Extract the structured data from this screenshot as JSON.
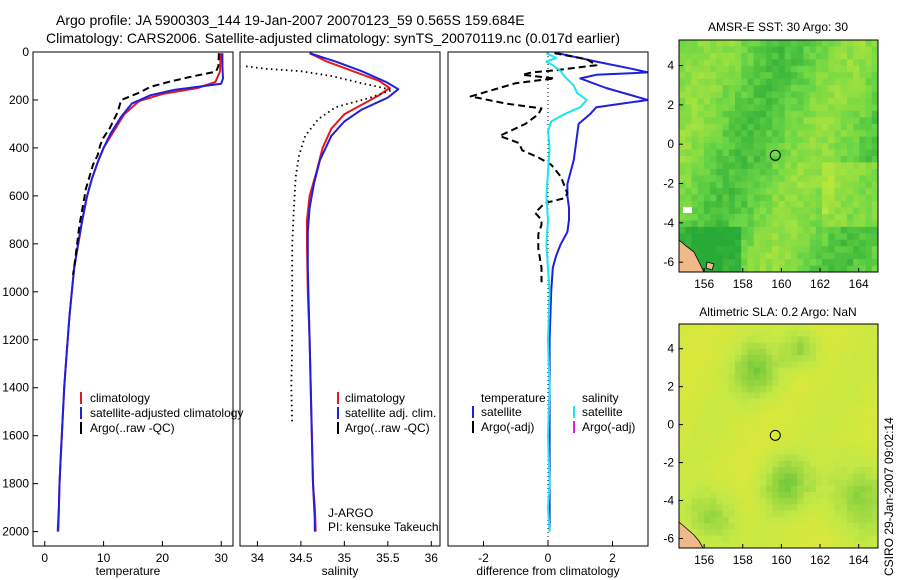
{
  "header": {
    "title_line1": "Argo profile: JA 5900303_144 19-Jan-2007 20070123_59 0.565S 159.684E",
    "title_line2": "Climatology: CARS2006. Satellite-adjusted climatology: synTS_20070119.nc (0.017d earlier)"
  },
  "footer": {
    "credit": "CSIRO 29-Jan-2007 09:02:14"
  },
  "colors": {
    "climatology": "#e31a1c",
    "satellite": "#1f1fe0",
    "argo": "#000000",
    "sat_salinity": "#19e6f0",
    "argo_adj_salinity": "#e01ee0"
  },
  "chart_data": [
    {
      "id": "temperature",
      "type": "line",
      "xlabel": "temperature",
      "xlim": [
        -2,
        32
      ],
      "ylim": [
        2060,
        0
      ],
      "xticks": [
        "0",
        "10",
        "20",
        "30"
      ],
      "yticks": [
        "0",
        "200",
        "400",
        "600",
        "800",
        "1000",
        "1200",
        "1400",
        "1600",
        "1800",
        "2000"
      ],
      "legend": {
        "position": "lower-left",
        "items": [
          {
            "label": "climatology",
            "color": "#e31a1c"
          },
          {
            "label": "satellite-adjusted climatology",
            "color": "#1f1fe0"
          },
          {
            "label": "Argo(..raw -QC)",
            "color": "#000000"
          }
        ]
      },
      "series": [
        {
          "name": "climatology",
          "color": "#e31a1c",
          "style": "solid",
          "points": [
            [
              29.9,
              5
            ],
            [
              29.8,
              80
            ],
            [
              29.0,
              125
            ],
            [
              26,
              150
            ],
            [
              20,
              175
            ],
            [
              16,
              205
            ],
            [
              13.5,
              260
            ],
            [
              11.5,
              340
            ],
            [
              10,
              400
            ],
            [
              9,
              460
            ],
            [
              8,
              530
            ],
            [
              7.2,
              600
            ],
            [
              6.4,
              700
            ],
            [
              5.7,
              800
            ],
            [
              5,
              900
            ],
            [
              4.6,
              1000
            ],
            [
              4.2,
              1100
            ],
            [
              3.9,
              1200
            ],
            [
              3.6,
              1300
            ],
            [
              3.3,
              1400
            ],
            [
              3.1,
              1500
            ],
            [
              2.9,
              1600
            ],
            [
              2.7,
              1700
            ],
            [
              2.5,
              1800
            ],
            [
              2.4,
              1900
            ],
            [
              2.3,
              2000
            ]
          ]
        },
        {
          "name": "satellite-adjusted climatology",
          "color": "#1f1fe0",
          "style": "solid",
          "points": [
            [
              30.2,
              5
            ],
            [
              30.2,
              60
            ],
            [
              30.3,
              110
            ],
            [
              30,
              132
            ],
            [
              22,
              158
            ],
            [
              18,
              180
            ],
            [
              14.8,
              215
            ],
            [
              13,
              270
            ],
            [
              11.2,
              340
            ],
            [
              10,
              400
            ],
            [
              9,
              460
            ],
            [
              8,
              530
            ],
            [
              7.1,
              610
            ],
            [
              6.3,
              710
            ],
            [
              5.6,
              810
            ],
            [
              5,
              900
            ],
            [
              4.6,
              1000
            ],
            [
              4.2,
              1100
            ],
            [
              3.9,
              1200
            ],
            [
              3.6,
              1300
            ],
            [
              3.3,
              1400
            ],
            [
              3.1,
              1500
            ],
            [
              2.9,
              1600
            ],
            [
              2.7,
              1700
            ],
            [
              2.5,
              1800
            ],
            [
              2.4,
              1900
            ],
            [
              2.2,
              2000
            ]
          ]
        },
        {
          "name": "Argo(..raw -QC)",
          "color": "#000000",
          "style": "dashed",
          "points": [
            [
              29.6,
              5
            ],
            [
              29.5,
              60
            ],
            [
              29.1,
              82
            ],
            [
              25,
              102
            ],
            [
              21,
              125
            ],
            [
              18,
              145
            ],
            [
              16,
              170
            ],
            [
              13,
              200
            ],
            [
              12.4,
              250
            ],
            [
              11.6,
              290
            ],
            [
              11,
              320
            ],
            [
              9.9,
              360
            ],
            [
              9.4,
              390
            ],
            [
              9,
              430
            ],
            [
              8.2,
              470
            ],
            [
              7.6,
              520
            ],
            [
              7,
              570
            ],
            [
              6.5,
              640
            ],
            [
              5.9,
              720
            ],
            [
              5.6,
              780
            ],
            [
              5.2,
              860
            ],
            [
              4.8,
              930
            ]
          ]
        }
      ]
    },
    {
      "id": "salinity",
      "type": "line",
      "xlabel": "salinity",
      "xlim": [
        33.8,
        36.1
      ],
      "ylim": [
        2060,
        0
      ],
      "xticks": [
        "34",
        "34.5",
        "35",
        "35.5",
        "36"
      ],
      "annotation_lines": [
        "J-ARGO",
        "PI: kensuke Takeuchi"
      ],
      "legend": {
        "position": "lower-right",
        "items": [
          {
            "label": "climatology",
            "color": "#e31a1c"
          },
          {
            "label": "satellite adj. clim.",
            "color": "#1f1fe0"
          },
          {
            "label": "Argo(..raw -QC)",
            "color": "#000000"
          }
        ]
      },
      "series": [
        {
          "name": "climatology",
          "color": "#e31a1c",
          "style": "solid",
          "points": [
            [
              34.6,
              5
            ],
            [
              34.8,
              40
            ],
            [
              35.1,
              80
            ],
            [
              35.4,
              120
            ],
            [
              35.52,
              150
            ],
            [
              35.4,
              180
            ],
            [
              35.2,
              220
            ],
            [
              35.0,
              260
            ],
            [
              34.85,
              320
            ],
            [
              34.75,
              400
            ],
            [
              34.68,
              500
            ],
            [
              34.6,
              600
            ],
            [
              34.57,
              700
            ],
            [
              34.57,
              800
            ],
            [
              34.58,
              1000
            ],
            [
              34.6,
              1200
            ],
            [
              34.62,
              1500
            ],
            [
              34.64,
              1800
            ],
            [
              34.66,
              1900
            ],
            [
              34.67,
              2000
            ]
          ]
        },
        {
          "name": "satellite adj. clim.",
          "color": "#1f1fe0",
          "style": "solid",
          "points": [
            [
              34.6,
              5
            ],
            [
              34.9,
              40
            ],
            [
              35.2,
              80
            ],
            [
              35.48,
              125
            ],
            [
              35.62,
              155
            ],
            [
              35.5,
              190
            ],
            [
              35.2,
              240
            ],
            [
              35.0,
              290
            ],
            [
              34.85,
              350
            ],
            [
              34.72,
              450
            ],
            [
              34.65,
              550
            ],
            [
              34.6,
              650
            ],
            [
              34.58,
              750
            ],
            [
              34.58,
              900
            ],
            [
              34.6,
              1200
            ],
            [
              34.62,
              1500
            ],
            [
              34.64,
              1800
            ],
            [
              34.66,
              1950
            ],
            [
              34.66,
              2000
            ]
          ]
        },
        {
          "name": "Argo(..raw -QC)",
          "color": "#000000",
          "style": "dotted",
          "points": [
            [
              33.87,
              60
            ],
            [
              34.1,
              70
            ],
            [
              34.5,
              80
            ],
            [
              34.85,
              100
            ],
            [
              35.2,
              130
            ],
            [
              35.55,
              158
            ],
            [
              35.3,
              190
            ],
            [
              34.9,
              230
            ],
            [
              34.7,
              280
            ],
            [
              34.55,
              350
            ],
            [
              34.48,
              430
            ],
            [
              34.44,
              520
            ],
            [
              34.42,
              650
            ],
            [
              34.4,
              800
            ],
            [
              34.4,
              1000
            ],
            [
              34.4,
              1200
            ],
            [
              34.39,
              1400
            ],
            [
              34.4,
              1550
            ]
          ]
        }
      ]
    },
    {
      "id": "difference",
      "type": "line",
      "xlabel": "difference from climatology",
      "xlim": [
        -3.1,
        3.1
      ],
      "ylim": [
        2060,
        0
      ],
      "xticks": [
        "-2",
        "0",
        "2"
      ],
      "legend": {
        "position": "lower-center",
        "items": [
          {
            "label": "temperature",
            "color": "none",
            "group": "temperature"
          },
          {
            "label": "satellite",
            "color": "#1f1fe0",
            "group": "temperature"
          },
          {
            "label": "Argo(-adj)",
            "color": "#000000",
            "group": "temperature"
          },
          {
            "label": "salinity",
            "color": "none",
            "group": "salinity"
          },
          {
            "label": "satellite",
            "color": "#19e6f0",
            "group": "salinity"
          },
          {
            "label": "Argo(-adj)",
            "color": "#e01ee0",
            "group": "salinity"
          }
        ]
      },
      "series": [
        {
          "name": "temperature satellite",
          "color": "#1f1fe0",
          "style": "solid",
          "points": [
            [
              0.3,
              5
            ],
            [
              1.5,
              40
            ],
            [
              2.6,
              70
            ],
            [
              3.1,
              85
            ],
            [
              1.5,
              95
            ],
            [
              1.0,
              110
            ],
            [
              1.8,
              150
            ],
            [
              3.1,
              200
            ],
            [
              1.5,
              230
            ],
            [
              1.3,
              260
            ],
            [
              0.95,
              300
            ],
            [
              0.9,
              350
            ],
            [
              0.85,
              400
            ],
            [
              0.8,
              450
            ],
            [
              0.7,
              500
            ],
            [
              0.6,
              550
            ],
            [
              0.6,
              600
            ],
            [
              0.65,
              650
            ],
            [
              0.65,
              700
            ],
            [
              0.6,
              750
            ],
            [
              0.4,
              800
            ],
            [
              0.25,
              850
            ],
            [
              0.15,
              900
            ],
            [
              0.1,
              1000
            ],
            [
              0.05,
              1200
            ],
            [
              0.05,
              1500
            ],
            [
              0.05,
              1800
            ],
            [
              0.05,
              2000
            ]
          ]
        },
        {
          "name": "temperature Argo(-adj)",
          "color": "#000000",
          "style": "dashed",
          "points": [
            [
              0.2,
              5
            ],
            [
              1.2,
              30
            ],
            [
              1.5,
              55
            ],
            [
              0.3,
              75
            ],
            [
              -0.5,
              85
            ],
            [
              -0.8,
              95
            ],
            [
              0.2,
              110
            ],
            [
              -1.0,
              130
            ],
            [
              -2.4,
              185
            ],
            [
              -1.3,
              215
            ],
            [
              -0.2,
              235
            ],
            [
              -0.3,
              260
            ],
            [
              -0.7,
              300
            ],
            [
              -1.5,
              350
            ],
            [
              -0.9,
              380
            ],
            [
              -0.8,
              410
            ],
            [
              -0.3,
              440
            ],
            [
              0.1,
              470
            ],
            [
              0.4,
              520
            ],
            [
              0.6,
              590
            ],
            [
              0.5,
              610
            ],
            [
              -0.1,
              630
            ],
            [
              -0.4,
              670
            ],
            [
              -0.2,
              700
            ],
            [
              -0.2,
              720
            ],
            [
              -0.3,
              760
            ],
            [
              -0.3,
              820
            ],
            [
              -0.2,
              900
            ],
            [
              -0.2,
              960
            ]
          ]
        },
        {
          "name": "salinity satellite",
          "color": "#19e6f0",
          "style": "solid",
          "points": [
            [
              -0.05,
              5
            ],
            [
              0.25,
              25
            ],
            [
              -0.05,
              40
            ],
            [
              0.15,
              55
            ],
            [
              0.4,
              80
            ],
            [
              0.5,
              100
            ],
            [
              0.8,
              140
            ],
            [
              0.9,
              170
            ],
            [
              1.2,
              200
            ],
            [
              1.0,
              230
            ],
            [
              0.5,
              260
            ],
            [
              0.1,
              290
            ],
            [
              0.0,
              330
            ],
            [
              0.05,
              400
            ],
            [
              0.0,
              500
            ],
            [
              -0.05,
              600
            ],
            [
              0.0,
              700
            ],
            [
              -0.05,
              800
            ],
            [
              0.0,
              900
            ],
            [
              0.05,
              1000
            ],
            [
              0.0,
              1200
            ],
            [
              0.05,
              1400
            ],
            [
              0.0,
              1600
            ],
            [
              0.05,
              1800
            ],
            [
              0.0,
              1900
            ],
            [
              0.05,
              2000
            ]
          ]
        }
      ]
    },
    {
      "id": "sst_map",
      "type": "heatmap",
      "title": "AMSR-E SST: 30 Argo: 30",
      "xlim": [
        154.7,
        165
      ],
      "ylim": [
        -6.5,
        5.3
      ],
      "xticks": [
        "156",
        "158",
        "160",
        "162",
        "164"
      ],
      "yticks": [
        "4",
        "2",
        "0",
        "-2",
        "-4",
        "-6"
      ],
      "marker": {
        "lon": 159.684,
        "lat": -0.565
      }
    },
    {
      "id": "sla_map",
      "type": "heatmap",
      "title": "Altimetric SLA: 0.2 Argo: NaN",
      "xlim": [
        154.7,
        165
      ],
      "ylim": [
        -6.5,
        5.3
      ],
      "xticks": [
        "156",
        "158",
        "160",
        "162",
        "164"
      ],
      "yticks": [
        "4",
        "2",
        "0",
        "-2",
        "-4",
        "-6"
      ],
      "marker": {
        "lon": 159.684,
        "lat": -0.565
      }
    }
  ]
}
